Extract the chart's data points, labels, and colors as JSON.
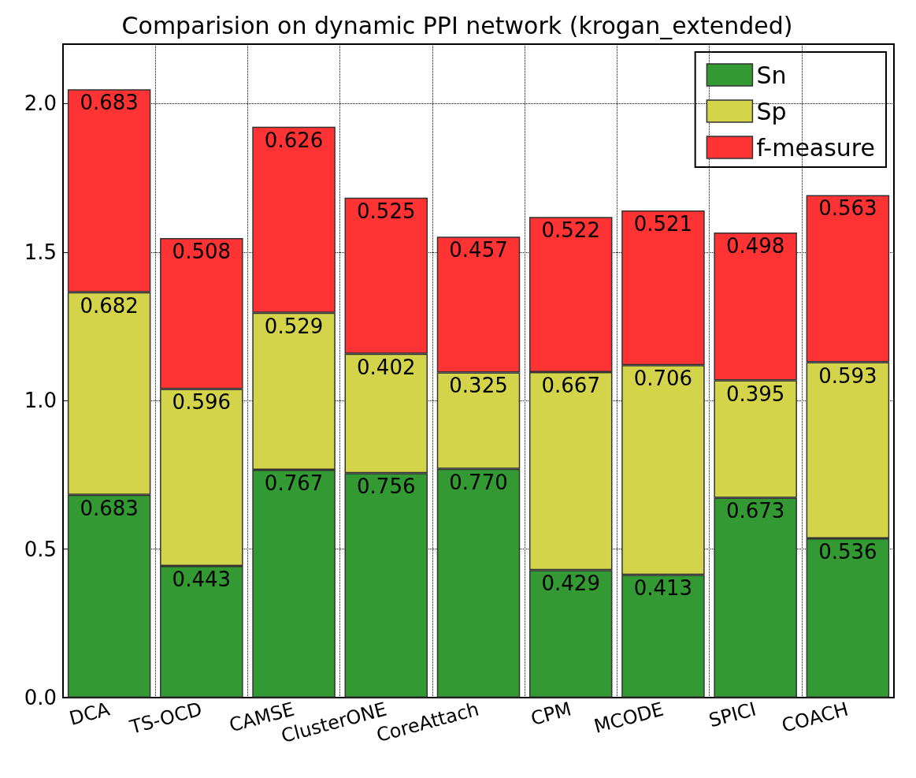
{
  "chart_data": {
    "type": "bar",
    "title": "Comparision on dynamic PPI network (krogan_extended)",
    "stacked": true,
    "categories": [
      "DCA",
      "TS-OCD",
      "CAMSE",
      "ClusterONE",
      "CoreAttach",
      "CPM",
      "MCODE",
      "SPICI",
      "COACH"
    ],
    "series": [
      {
        "name": "Sn",
        "color": "#339933",
        "values": [
          0.683,
          0.443,
          0.767,
          0.756,
          0.77,
          0.429,
          0.413,
          0.673,
          0.536
        ],
        "value_labels": [
          "0.683",
          "0.443",
          "0.767",
          "0.756",
          "0.770",
          "0.429",
          "0.413",
          "0.673",
          "0.536"
        ]
      },
      {
        "name": "Sp",
        "color": "#d4d44a",
        "values": [
          0.682,
          0.596,
          0.529,
          0.402,
          0.325,
          0.667,
          0.706,
          0.395,
          0.593
        ],
        "value_labels": [
          "0.682",
          "0.596",
          "0.529",
          "0.402",
          "0.325",
          "0.667",
          "0.706",
          "0.395",
          "0.593"
        ]
      },
      {
        "name": "f-measure",
        "color": "#ff3333",
        "values": [
          0.683,
          0.508,
          0.626,
          0.525,
          0.457,
          0.522,
          0.521,
          0.498,
          0.563
        ],
        "value_labels": [
          "0.683",
          "0.508",
          "0.626",
          "0.525",
          "0.457",
          "0.522",
          "0.521",
          "0.498",
          "0.563"
        ]
      }
    ],
    "ylim": [
      0,
      2.2
    ],
    "yticks": [
      {
        "value": 0,
        "label": "0.0"
      },
      0.5,
      {
        "value": 1,
        "label": "1.0"
      },
      1.5,
      {
        "value": 2,
        "label": "2.0"
      }
    ],
    "grid": true,
    "legend": "top right"
  }
}
